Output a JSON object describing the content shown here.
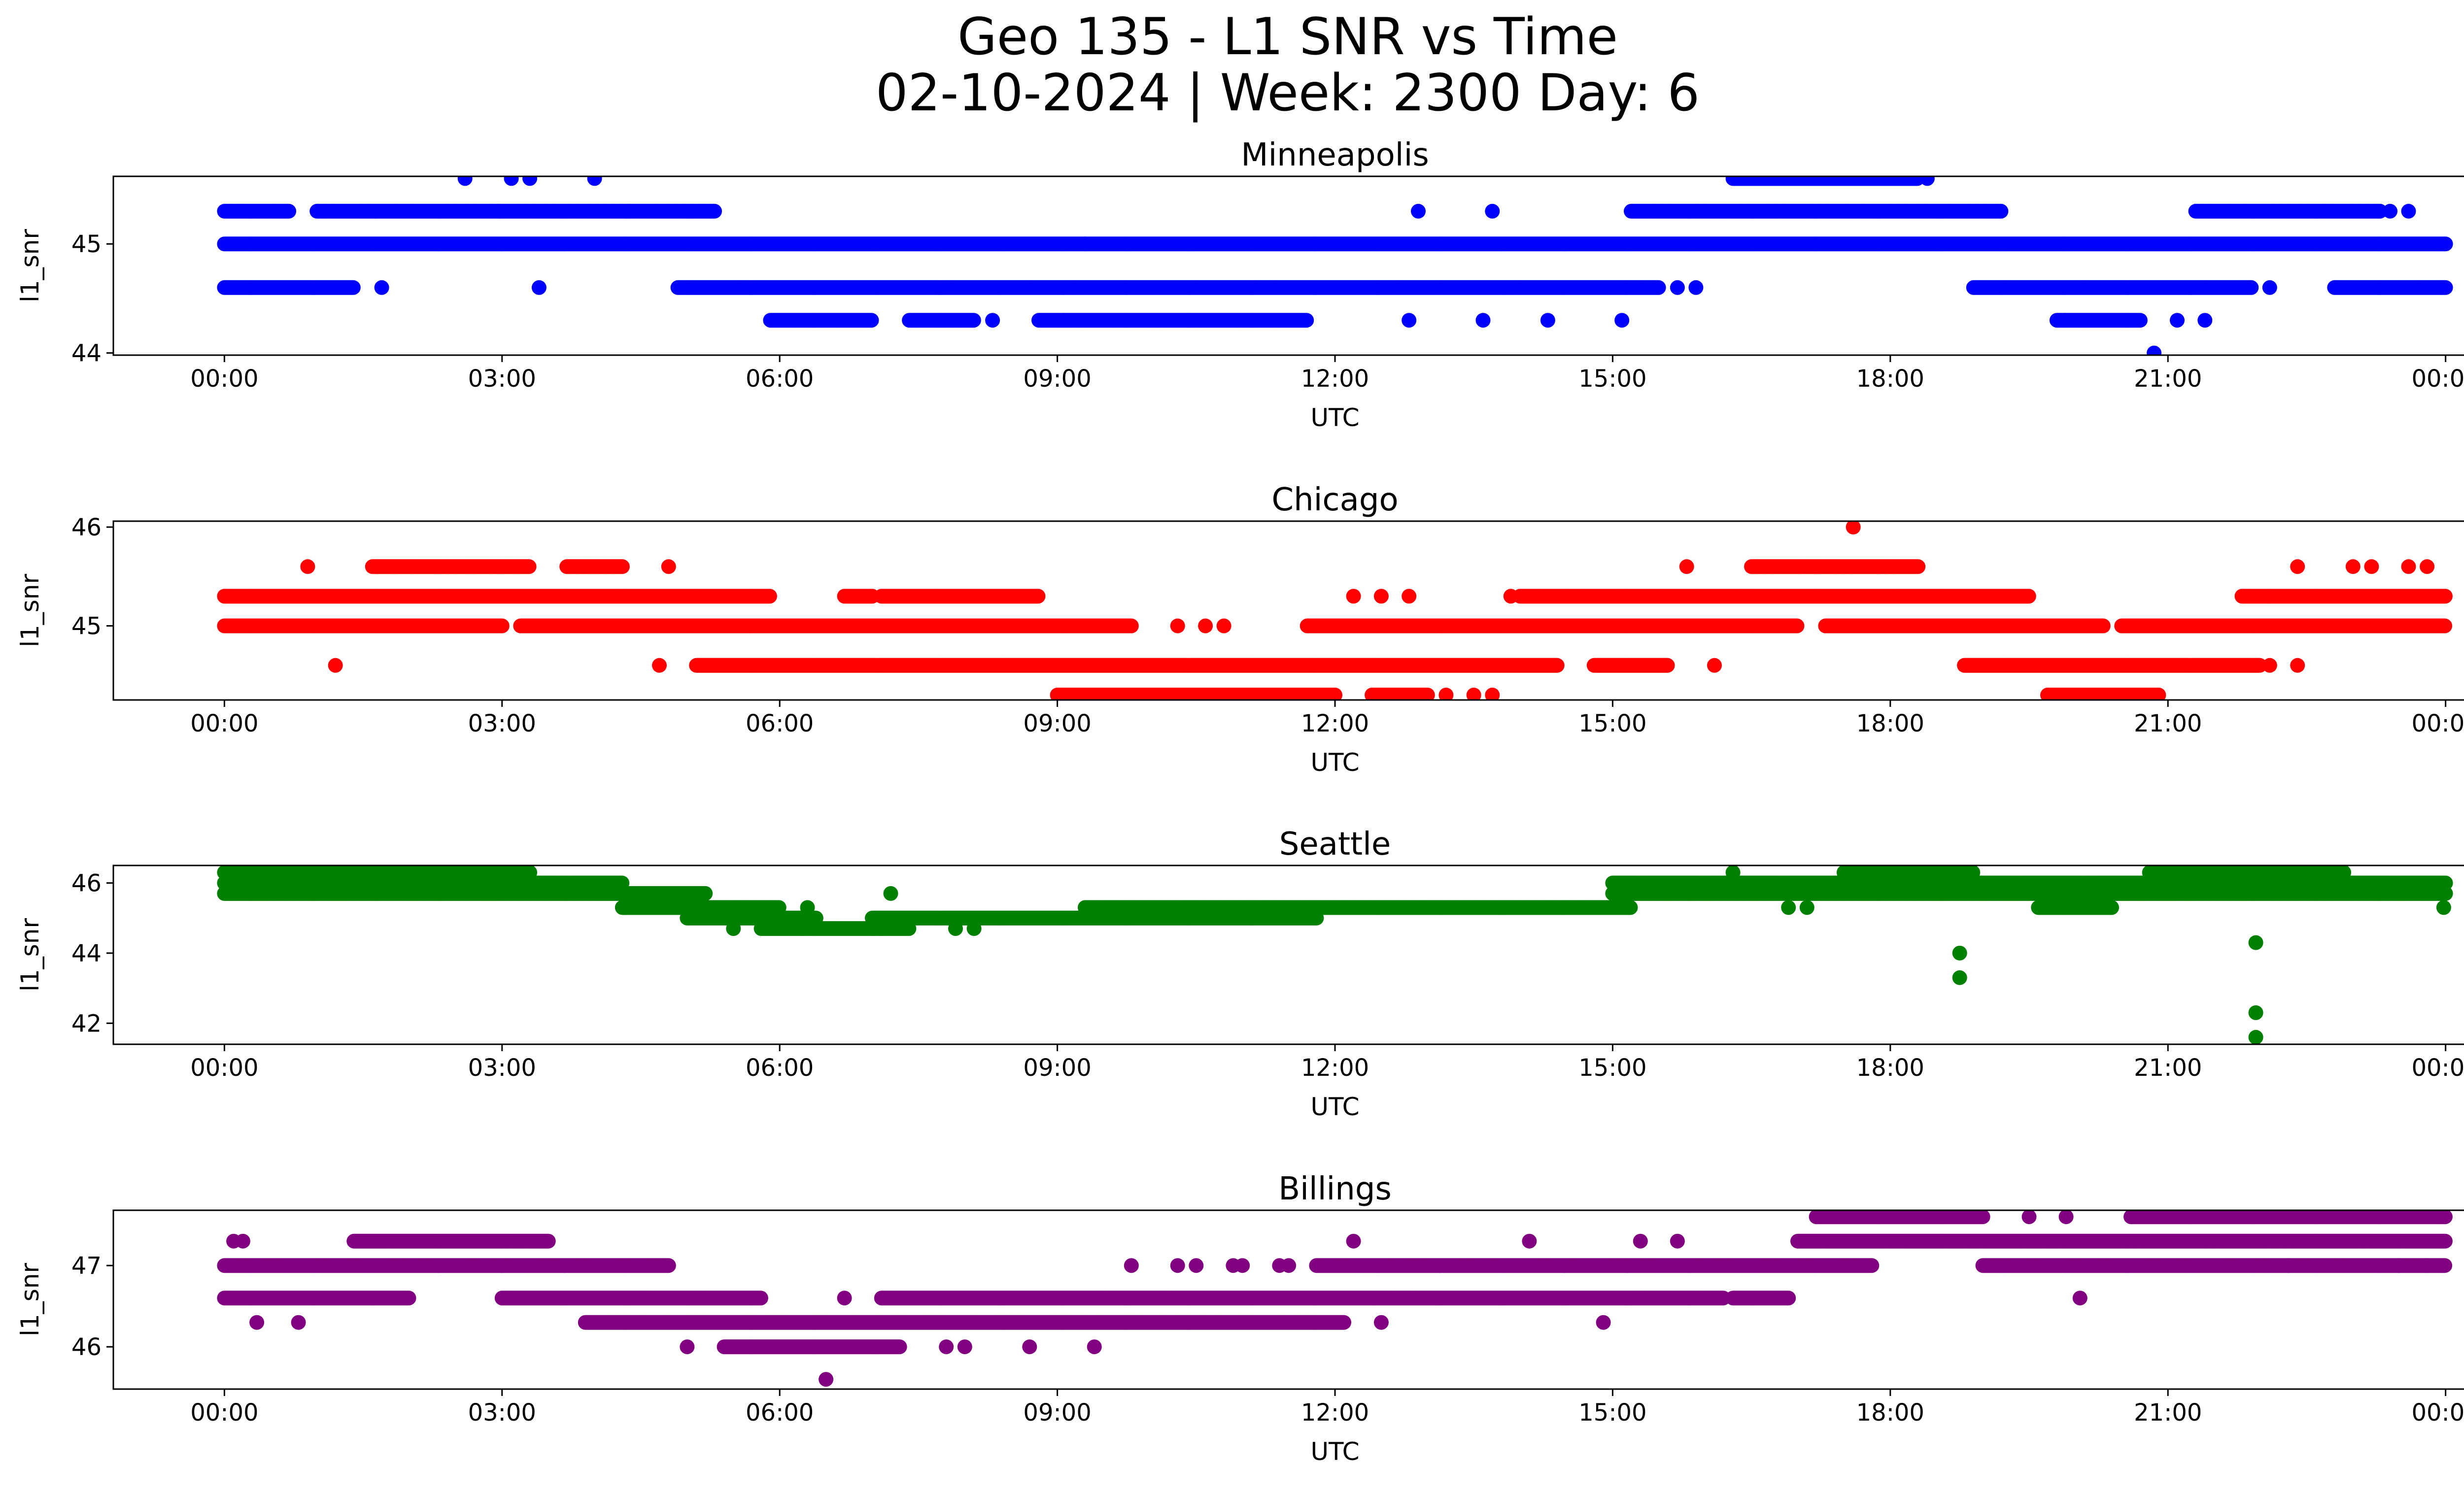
{
  "figure": {
    "title_line1": "Geo 135 - L1 SNR vs Time",
    "title_line2": "02-10-2024 | Week: 2300 Day: 6"
  },
  "chart_data": [
    {
      "type": "scatter",
      "title": "Minneapolis",
      "xlabel": "UTC",
      "ylabel": "l1_snr",
      "color": "#0000ff",
      "x_unit": "hours UTC",
      "xlim": [
        -1.2,
        25.2
      ],
      "ylim": [
        43.98,
        45.62
      ],
      "x_ticks": [
        0,
        3,
        6,
        9,
        12,
        15,
        18,
        21,
        24
      ],
      "x_tick_labels": [
        "00:00",
        "03:00",
        "06:00",
        "09:00",
        "12:00",
        "15:00",
        "18:00",
        "21:00",
        "00:00"
      ],
      "y_ticks": [
        44,
        45
      ],
      "y_tick_labels": [
        "44",
        "45"
      ],
      "levels": [
        {
          "y": 45.0,
          "segments": [
            [
              0,
              24
            ]
          ]
        },
        {
          "y": 45.3,
          "segments": [
            [
              0,
              0.7
            ],
            [
              1.0,
              5.3
            ],
            [
              15.2,
              19.2
            ],
            [
              21.3,
              23.3
            ]
          ]
        },
        {
          "y": 44.6,
          "segments": [
            [
              0,
              1.4
            ],
            [
              4.9,
              15.5
            ],
            [
              18.9,
              21.9
            ],
            [
              22.8,
              24
            ]
          ]
        },
        {
          "y": 44.3,
          "segments": [
            [
              5.9,
              7.0
            ],
            [
              7.4,
              8.1
            ],
            [
              8.8,
              11.7
            ],
            [
              19.8,
              20.7
            ]
          ]
        },
        {
          "y": 45.6,
          "segments": [
            [
              16.3,
              18.3
            ]
          ]
        }
      ],
      "points": [
        {
          "x": 2.6,
          "y": 45.6
        },
        {
          "x": 3.1,
          "y": 45.6
        },
        {
          "x": 3.3,
          "y": 45.6
        },
        {
          "x": 4.0,
          "y": 45.6
        },
        {
          "x": 3.4,
          "y": 44.6
        },
        {
          "x": 1.7,
          "y": 44.6
        },
        {
          "x": 8.3,
          "y": 44.3
        },
        {
          "x": 12.9,
          "y": 45.3
        },
        {
          "x": 13.7,
          "y": 45.3
        },
        {
          "x": 18.4,
          "y": 45.6
        },
        {
          "x": 12.8,
          "y": 44.3
        },
        {
          "x": 13.6,
          "y": 44.3
        },
        {
          "x": 14.3,
          "y": 44.3
        },
        {
          "x": 15.1,
          "y": 44.3
        },
        {
          "x": 15.7,
          "y": 44.6
        },
        {
          "x": 15.9,
          "y": 44.6
        },
        {
          "x": 21.1,
          "y": 44.3
        },
        {
          "x": 21.4,
          "y": 44.3
        },
        {
          "x": 22.1,
          "y": 44.6
        },
        {
          "x": 23.4,
          "y": 45.3
        },
        {
          "x": 23.6,
          "y": 45.3
        },
        {
          "x": 20.85,
          "y": 44.0
        },
        {
          "x": 9.3,
          "y": 45.0
        }
      ]
    },
    {
      "type": "scatter",
      "title": "Chicago",
      "xlabel": "UTC",
      "ylabel": "l1_snr",
      "color": "#ff0000",
      "x_unit": "hours UTC",
      "xlim": [
        -1.2,
        25.2
      ],
      "ylim": [
        44.25,
        46.06
      ],
      "x_ticks": [
        0,
        3,
        6,
        9,
        12,
        15,
        18,
        21,
        24
      ],
      "x_tick_labels": [
        "00:00",
        "03:00",
        "06:00",
        "09:00",
        "12:00",
        "15:00",
        "18:00",
        "21:00",
        "00:00"
      ],
      "y_ticks": [
        45,
        46
      ],
      "y_tick_labels": [
        "45",
        "46"
      ],
      "levels": [
        {
          "y": 45.3,
          "segments": [
            [
              0,
              5.9
            ],
            [
              6.7,
              7.0
            ],
            [
              7.1,
              8.8
            ],
            [
              14.0,
              19.5
            ],
            [
              21.8,
              24
            ]
          ]
        },
        {
          "y": 45.0,
          "segments": [
            [
              0,
              3.0
            ],
            [
              3.2,
              9.8
            ],
            [
              11.7,
              17.0
            ],
            [
              17.3,
              20.3
            ],
            [
              20.5,
              24
            ]
          ]
        },
        {
          "y": 44.6,
          "segments": [
            [
              5.1,
              14.4
            ],
            [
              14.8,
              15.6
            ],
            [
              18.8,
              22.0
            ]
          ]
        },
        {
          "y": 44.3,
          "segments": [
            [
              9.0,
              12.0
            ],
            [
              12.4,
              13.0
            ],
            [
              19.7,
              20.9
            ]
          ]
        },
        {
          "y": 45.6,
          "segments": [
            [
              1.6,
              3.3
            ],
            [
              3.7,
              4.3
            ],
            [
              16.5,
              18.3
            ]
          ]
        }
      ],
      "points": [
        {
          "x": 0.9,
          "y": 45.6
        },
        {
          "x": 4.8,
          "y": 45.6
        },
        {
          "x": 1.2,
          "y": 44.6
        },
        {
          "x": 4.7,
          "y": 44.6
        },
        {
          "x": 10.3,
          "y": 45.0
        },
        {
          "x": 10.6,
          "y": 45.0
        },
        {
          "x": 10.8,
          "y": 45.0
        },
        {
          "x": 12.2,
          "y": 45.3
        },
        {
          "x": 12.5,
          "y": 45.3
        },
        {
          "x": 12.8,
          "y": 45.3
        },
        {
          "x": 13.9,
          "y": 45.3
        },
        {
          "x": 15.8,
          "y": 45.6
        },
        {
          "x": 17.6,
          "y": 46.0
        },
        {
          "x": 16.1,
          "y": 44.6
        },
        {
          "x": 13.2,
          "y": 44.3
        },
        {
          "x": 13.5,
          "y": 44.3
        },
        {
          "x": 13.7,
          "y": 44.3
        },
        {
          "x": 22.1,
          "y": 45.3
        },
        {
          "x": 22.4,
          "y": 45.6
        },
        {
          "x": 23.0,
          "y": 45.6
        },
        {
          "x": 23.2,
          "y": 45.6
        },
        {
          "x": 23.6,
          "y": 45.6
        },
        {
          "x": 23.8,
          "y": 45.6
        },
        {
          "x": 22.1,
          "y": 44.6
        },
        {
          "x": 22.4,
          "y": 44.6
        }
      ]
    },
    {
      "type": "scatter",
      "title": "Seattle",
      "xlabel": "UTC",
      "ylabel": "l1_snr",
      "color": "#008000",
      "x_unit": "hours UTC",
      "xlim": [
        -1.2,
        25.2
      ],
      "ylim": [
        41.4,
        46.5
      ],
      "x_ticks": [
        0,
        3,
        6,
        9,
        12,
        15,
        18,
        21,
        24
      ],
      "x_tick_labels": [
        "00:00",
        "03:00",
        "06:00",
        "09:00",
        "12:00",
        "15:00",
        "18:00",
        "21:00",
        "00:00"
      ],
      "y_ticks": [
        42,
        44,
        46
      ],
      "y_tick_labels": [
        "42",
        "44",
        "46"
      ],
      "levels": [
        {
          "y": 46.0,
          "segments": [
            [
              0,
              4.3
            ],
            [
              15.0,
              24
            ]
          ]
        },
        {
          "y": 46.3,
          "segments": [
            [
              0,
              3.3
            ],
            [
              17.5,
              18.9
            ],
            [
              20.8,
              22.9
            ]
          ]
        },
        {
          "y": 45.7,
          "segments": [
            [
              0,
              5.2
            ],
            [
              15.0,
              24
            ]
          ]
        },
        {
          "y": 45.3,
          "segments": [
            [
              4.3,
              6.0
            ],
            [
              9.3,
              15.2
            ],
            [
              19.6,
              20.4
            ]
          ]
        },
        {
          "y": 45.0,
          "segments": [
            [
              5.0,
              6.4
            ],
            [
              7.0,
              11.8
            ]
          ]
        },
        {
          "y": 44.7,
          "segments": [
            [
              5.8,
              7.4
            ]
          ]
        }
      ],
      "points": [
        {
          "x": 5.5,
          "y": 44.7
        },
        {
          "x": 7.9,
          "y": 44.7
        },
        {
          "x": 8.1,
          "y": 44.7
        },
        {
          "x": 7.2,
          "y": 45.7
        },
        {
          "x": 6.3,
          "y": 45.3
        },
        {
          "x": 16.3,
          "y": 46.3
        },
        {
          "x": 16.9,
          "y": 45.3
        },
        {
          "x": 17.1,
          "y": 45.3
        },
        {
          "x": 18.75,
          "y": 44.0
        },
        {
          "x": 18.75,
          "y": 43.3
        },
        {
          "x": 21.95,
          "y": 44.3
        },
        {
          "x": 21.95,
          "y": 42.3
        },
        {
          "x": 21.95,
          "y": 41.6
        },
        {
          "x": 23.98,
          "y": 45.3
        }
      ]
    },
    {
      "type": "scatter",
      "title": "Billings",
      "xlabel": "UTC",
      "ylabel": "l1_snr",
      "color": "#800080",
      "x_unit": "hours UTC",
      "xlim": [
        -1.2,
        25.2
      ],
      "ylim": [
        45.48,
        47.68
      ],
      "x_ticks": [
        0,
        3,
        6,
        9,
        12,
        15,
        18,
        21,
        24
      ],
      "x_tick_labels": [
        "00:00",
        "03:00",
        "06:00",
        "09:00",
        "12:00",
        "15:00",
        "18:00",
        "21:00",
        "00:00"
      ],
      "y_ticks": [
        46,
        47
      ],
      "y_tick_labels": [
        "46",
        "47"
      ],
      "levels": [
        {
          "y": 47.3,
          "segments": [
            [
              1.4,
              3.5
            ],
            [
              17.0,
              24
            ]
          ]
        },
        {
          "y": 47.0,
          "segments": [
            [
              0,
              4.8
            ],
            [
              11.8,
              17.8
            ],
            [
              19.0,
              24
            ]
          ]
        },
        {
          "y": 46.6,
          "segments": [
            [
              0,
              2.0
            ],
            [
              3.0,
              5.8
            ],
            [
              7.1,
              16.2
            ],
            [
              16.3,
              16.9
            ]
          ]
        },
        {
          "y": 46.3,
          "segments": [
            [
              3.9,
              12.1
            ]
          ]
        },
        {
          "y": 46.0,
          "segments": [
            [
              5.4,
              7.3
            ]
          ]
        },
        {
          "y": 47.6,
          "segments": [
            [
              17.2,
              19.0
            ],
            [
              20.6,
              24
            ]
          ]
        }
      ],
      "points": [
        {
          "x": 0.1,
          "y": 47.3
        },
        {
          "x": 0.2,
          "y": 47.3
        },
        {
          "x": 0.35,
          "y": 46.3
        },
        {
          "x": 0.8,
          "y": 46.3
        },
        {
          "x": 5.0,
          "y": 46.0
        },
        {
          "x": 6.5,
          "y": 45.6
        },
        {
          "x": 6.7,
          "y": 46.6
        },
        {
          "x": 7.8,
          "y": 46.0
        },
        {
          "x": 8.0,
          "y": 46.0
        },
        {
          "x": 8.7,
          "y": 46.0
        },
        {
          "x": 9.4,
          "y": 46.0
        },
        {
          "x": 9.8,
          "y": 47.0
        },
        {
          "x": 10.3,
          "y": 47.0
        },
        {
          "x": 10.5,
          "y": 47.0
        },
        {
          "x": 10.9,
          "y": 47.0
        },
        {
          "x": 11.0,
          "y": 47.0
        },
        {
          "x": 11.4,
          "y": 47.0
        },
        {
          "x": 11.5,
          "y": 47.0
        },
        {
          "x": 12.2,
          "y": 47.3
        },
        {
          "x": 14.1,
          "y": 47.3
        },
        {
          "x": 15.3,
          "y": 47.3
        },
        {
          "x": 15.7,
          "y": 47.3
        },
        {
          "x": 12.5,
          "y": 46.3
        },
        {
          "x": 14.9,
          "y": 46.3
        },
        {
          "x": 19.5,
          "y": 47.6
        },
        {
          "x": 19.9,
          "y": 47.6
        },
        {
          "x": 20.05,
          "y": 46.6
        },
        {
          "x": 22.3,
          "y": 47.0
        },
        {
          "x": 23.5,
          "y": 47.0
        },
        {
          "x": 23.8,
          "y": 47.0
        }
      ]
    }
  ]
}
